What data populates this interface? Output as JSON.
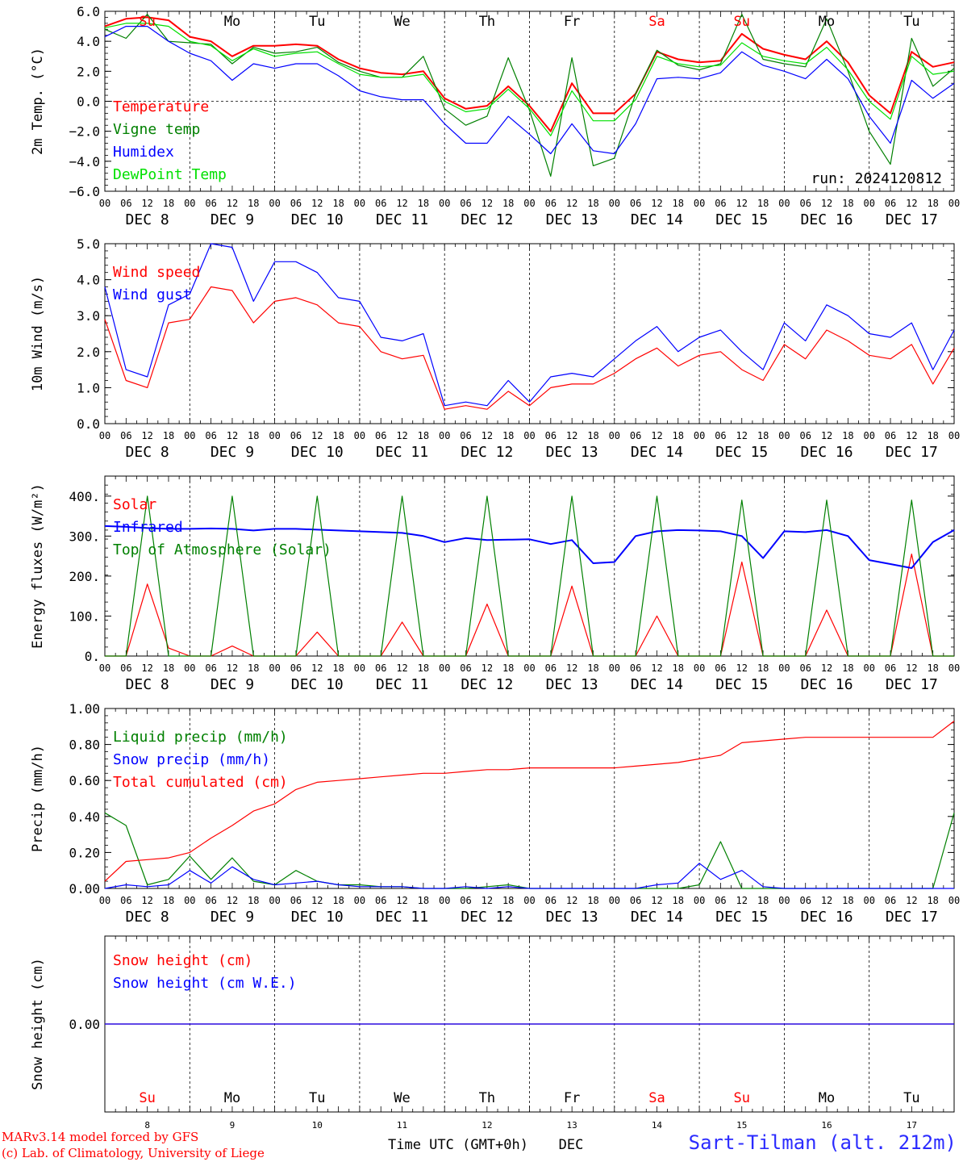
{
  "run_label": "run: 2024120812",
  "footer": {
    "line1": "MARv3.14 model forced by GFS",
    "line2": "(c) Lab. of Climatology, University of Liege",
    "time_label": "Time UTC (GMT+0h)",
    "dec_label": "DEC",
    "station": "Sart-Tilman (alt. 212m)"
  },
  "days": [
    {
      "abbr": "Su",
      "date": "DEC  8",
      "num": "8",
      "weekend": true
    },
    {
      "abbr": "Mo",
      "date": "DEC  9",
      "num": "9",
      "weekend": false
    },
    {
      "abbr": "Tu",
      "date": "DEC 10",
      "num": "10",
      "weekend": false
    },
    {
      "abbr": "We",
      "date": "DEC 11",
      "num": "11",
      "weekend": false
    },
    {
      "abbr": "Th",
      "date": "DEC 12",
      "num": "12",
      "weekend": false
    },
    {
      "abbr": "Fr",
      "date": "DEC 13",
      "num": "13",
      "weekend": false
    },
    {
      "abbr": "Sa",
      "date": "DEC 14",
      "num": "14",
      "weekend": true
    },
    {
      "abbr": "Su",
      "date": "DEC 15",
      "num": "15",
      "weekend": true
    },
    {
      "abbr": "Mo",
      "date": "DEC 16",
      "num": "16",
      "weekend": false
    },
    {
      "abbr": "Tu",
      "date": "DEC 17",
      "num": "17",
      "weekend": false
    }
  ],
  "hour_labels": [
    "00",
    "06",
    "12",
    "18"
  ],
  "colors": {
    "red": "#ff0000",
    "green": "#008000",
    "blue": "#0000ff",
    "lightgreen": "#00e000",
    "weekend": "#ff0000",
    "axis": "#000000"
  },
  "chart_data": [
    {
      "type": "line",
      "ylabel": "2m Temp. (°C)",
      "ylim": [
        -6,
        6
      ],
      "yticks": [
        "6.0",
        "4.0",
        "2.0",
        "0.0",
        "−2.0",
        "−4.0",
        "−6.0"
      ],
      "x_hours": [
        0,
        6,
        12,
        18,
        24,
        30,
        36,
        42,
        48,
        54,
        60,
        66,
        72,
        78,
        84,
        90,
        96,
        102,
        108,
        114,
        120,
        126,
        132,
        138,
        144,
        150,
        156,
        162,
        168,
        174,
        180,
        186,
        192,
        198,
        204,
        210,
        216,
        222,
        228,
        234,
        240
      ],
      "series": [
        {
          "name": "Temperature",
          "color": "#ff0000",
          "values": [
            5.0,
            5.5,
            5.6,
            5.4,
            4.3,
            4.0,
            3.0,
            3.7,
            3.7,
            3.8,
            3.7,
            2.8,
            2.2,
            1.9,
            1.8,
            2.0,
            0.2,
            -0.5,
            -0.3,
            1.0,
            -0.3,
            -2.0,
            1.2,
            -0.8,
            -0.8,
            0.5,
            3.3,
            2.8,
            2.6,
            2.7,
            4.5,
            3.5,
            3.1,
            2.8,
            4.0,
            2.6,
            0.4,
            -0.8,
            3.3,
            2.3,
            2.6
          ]
        },
        {
          "name": "Vigne temp",
          "color": "#008000",
          "values": [
            4.8,
            4.2,
            5.8,
            4.0,
            3.9,
            3.8,
            2.5,
            3.6,
            3.2,
            3.3,
            3.6,
            2.6,
            2.0,
            1.6,
            1.6,
            3.0,
            -0.5,
            -1.6,
            -1.0,
            2.9,
            -0.6,
            -5.0,
            2.9,
            -4.3,
            -3.8,
            0.5,
            3.4,
            2.4,
            2.1,
            2.5,
            5.8,
            2.8,
            2.5,
            2.3,
            5.5,
            2.0,
            -2.0,
            -4.2,
            4.2,
            1.0,
            2.2
          ]
        },
        {
          "name": "Humidex",
          "color": "#0000ff",
          "values": [
            4.3,
            5.0,
            5.0,
            4.0,
            3.2,
            2.7,
            1.4,
            2.5,
            2.2,
            2.5,
            2.5,
            1.7,
            0.7,
            0.3,
            0.1,
            0.1,
            -1.5,
            -2.8,
            -2.8,
            -1.0,
            -2.2,
            -3.5,
            -1.5,
            -3.3,
            -3.5,
            -1.5,
            1.5,
            1.6,
            1.5,
            1.9,
            3.3,
            2.4,
            2.0,
            1.5,
            2.8,
            1.5,
            -1.0,
            -2.8,
            1.4,
            0.2,
            1.2
          ]
        },
        {
          "name": "DewPoint Temp",
          "color": "#00e000",
          "values": [
            4.9,
            5.2,
            5.2,
            5.0,
            4.0,
            3.7,
            2.7,
            3.5,
            3.0,
            3.2,
            3.3,
            2.5,
            1.8,
            1.6,
            1.6,
            1.8,
            0.0,
            -0.7,
            -0.5,
            0.8,
            -0.5,
            -2.3,
            0.7,
            -1.3,
            -1.3,
            0.1,
            3.0,
            2.5,
            2.3,
            2.4,
            3.9,
            3.0,
            2.7,
            2.5,
            3.6,
            2.1,
            0.0,
            -1.2,
            3.0,
            1.8,
            2.0
          ]
        }
      ]
    },
    {
      "type": "line",
      "ylabel": "10m Wind (m/s)",
      "ylim": [
        0,
        5
      ],
      "yticks": [
        "5.0",
        "4.0",
        "3.0",
        "2.0",
        "1.0",
        "0.0"
      ],
      "x_hours": [
        0,
        6,
        12,
        18,
        24,
        30,
        36,
        42,
        48,
        54,
        60,
        66,
        72,
        78,
        84,
        90,
        96,
        102,
        108,
        114,
        120,
        126,
        132,
        138,
        144,
        150,
        156,
        162,
        168,
        174,
        180,
        186,
        192,
        198,
        204,
        210,
        216,
        222,
        228,
        234,
        240
      ],
      "series": [
        {
          "name": "Wind speed",
          "color": "#ff0000",
          "values": [
            2.9,
            1.2,
            1.0,
            2.8,
            2.9,
            3.8,
            3.7,
            2.8,
            3.4,
            3.5,
            3.3,
            2.8,
            2.7,
            2.0,
            1.8,
            1.9,
            0.4,
            0.5,
            0.4,
            0.9,
            0.5,
            1.0,
            1.1,
            1.1,
            1.4,
            1.8,
            2.1,
            1.6,
            1.9,
            2.0,
            1.5,
            1.2,
            2.2,
            1.8,
            2.6,
            2.3,
            1.9,
            1.8,
            2.2,
            1.1,
            2.1
          ]
        },
        {
          "name": "Wind gust",
          "color": "#0000ff",
          "values": [
            3.8,
            1.5,
            1.3,
            3.3,
            3.6,
            5.0,
            4.9,
            3.4,
            4.5,
            4.5,
            4.2,
            3.5,
            3.4,
            2.4,
            2.3,
            2.5,
            0.5,
            0.6,
            0.5,
            1.2,
            0.6,
            1.3,
            1.4,
            1.3,
            1.8,
            2.3,
            2.7,
            2.0,
            2.4,
            2.6,
            2.0,
            1.5,
            2.8,
            2.3,
            3.3,
            3.0,
            2.5,
            2.4,
            2.8,
            1.5,
            2.6
          ]
        }
      ]
    },
    {
      "type": "line",
      "ylabel": "Energy fluxes (W/m²)",
      "ylim": [
        0,
        450
      ],
      "yticks": [
        "400.",
        "300.",
        "200.",
        "100.",
        "0."
      ],
      "x_hours": [
        0,
        6,
        12,
        18,
        24,
        30,
        36,
        42,
        48,
        54,
        60,
        66,
        72,
        78,
        84,
        90,
        96,
        102,
        108,
        114,
        120,
        126,
        132,
        138,
        144,
        150,
        156,
        162,
        168,
        174,
        180,
        186,
        192,
        198,
        204,
        210,
        216,
        222,
        228,
        234,
        240
      ],
      "series": [
        {
          "name": "Solar",
          "color": "#ff0000",
          "values": [
            0,
            0,
            180,
            20,
            0,
            0,
            25,
            0,
            0,
            0,
            60,
            0,
            0,
            0,
            85,
            0,
            0,
            0,
            130,
            0,
            0,
            0,
            175,
            0,
            0,
            0,
            100,
            0,
            0,
            0,
            235,
            0,
            0,
            0,
            115,
            0,
            0,
            0,
            255,
            0,
            0
          ]
        },
        {
          "name": "Infrared",
          "color": "#0000ff",
          "values": [
            325,
            323,
            320,
            318,
            318,
            319,
            318,
            314,
            318,
            318,
            316,
            314,
            312,
            310,
            308,
            300,
            285,
            295,
            290,
            291,
            292,
            280,
            290,
            232,
            235,
            300,
            312,
            315,
            314,
            312,
            300,
            245,
            312,
            310,
            315,
            300,
            240,
            230,
            220,
            285,
            315
          ]
        },
        {
          "name": "Top of Atmosphere (Solar)",
          "color": "#008000",
          "values": [
            0,
            0,
            400,
            0,
            0,
            0,
            400,
            0,
            0,
            0,
            400,
            0,
            0,
            0,
            400,
            0,
            0,
            0,
            400,
            0,
            0,
            0,
            400,
            0,
            0,
            0,
            400,
            0,
            0,
            0,
            390,
            0,
            0,
            0,
            390,
            0,
            0,
            0,
            390,
            0,
            0
          ]
        }
      ]
    },
    {
      "type": "line",
      "ylabel": "Precip (mm/h)",
      "ylim": [
        0,
        1
      ],
      "yticks": [
        "1.00",
        "0.80",
        "0.60",
        "0.40",
        "0.20",
        "0.00"
      ],
      "x_hours": [
        0,
        6,
        12,
        18,
        24,
        30,
        36,
        42,
        48,
        54,
        60,
        66,
        72,
        78,
        84,
        90,
        96,
        102,
        108,
        114,
        120,
        126,
        132,
        138,
        144,
        150,
        156,
        162,
        168,
        174,
        180,
        186,
        192,
        198,
        204,
        210,
        216,
        222,
        228,
        234,
        240
      ],
      "series": [
        {
          "name": "Liquid precip (mm/h)",
          "color": "#008000",
          "values": [
            0.42,
            0.35,
            0.02,
            0.05,
            0.18,
            0.05,
            0.17,
            0.04,
            0.02,
            0.1,
            0.04,
            0.02,
            0.02,
            0.01,
            0.01,
            0.0,
            0.0,
            0.0,
            0.01,
            0.02,
            0.0,
            0.0,
            0.0,
            0.0,
            0.0,
            0.0,
            0.0,
            0.0,
            0.02,
            0.26,
            0.0,
            0.0,
            0.0,
            0.0,
            0.0,
            0.0,
            0.0,
            0.0,
            0.0,
            0.0,
            0.42
          ]
        },
        {
          "name": "Snow precip (mm/h)",
          "color": "#0000ff",
          "values": [
            0.0,
            0.02,
            0.01,
            0.02,
            0.1,
            0.03,
            0.12,
            0.05,
            0.02,
            0.03,
            0.04,
            0.02,
            0.01,
            0.01,
            0.01,
            0.0,
            0.0,
            0.01,
            0.0,
            0.01,
            0.0,
            0.0,
            0.0,
            0.0,
            0.0,
            0.0,
            0.02,
            0.03,
            0.14,
            0.05,
            0.1,
            0.01,
            0.0,
            0.0,
            0.0,
            0.0,
            0.0,
            0.0,
            0.0,
            0.0,
            0.0
          ]
        },
        {
          "name": "Total cumulated (cm)",
          "color": "#ff0000",
          "values": [
            0.04,
            0.15,
            0.16,
            0.17,
            0.2,
            0.28,
            0.35,
            0.43,
            0.47,
            0.55,
            0.59,
            0.6,
            0.61,
            0.62,
            0.63,
            0.64,
            0.64,
            0.65,
            0.66,
            0.66,
            0.67,
            0.67,
            0.67,
            0.67,
            0.67,
            0.68,
            0.69,
            0.7,
            0.72,
            0.74,
            0.81,
            0.82,
            0.83,
            0.84,
            0.84,
            0.84,
            0.84,
            0.84,
            0.84,
            0.84,
            0.93
          ]
        }
      ]
    },
    {
      "type": "line",
      "ylabel": "Snow height (cm)",
      "ylim": [
        -1,
        1
      ],
      "yticks": [
        "0.00"
      ],
      "x_hours": [
        0,
        240
      ],
      "series": [
        {
          "name": "Snow height (cm)",
          "color": "#ff0000",
          "values": [
            0,
            0
          ]
        },
        {
          "name": "Snow height (cm W.E.)",
          "color": "#0000ff",
          "values": [
            0,
            0
          ]
        }
      ]
    }
  ]
}
